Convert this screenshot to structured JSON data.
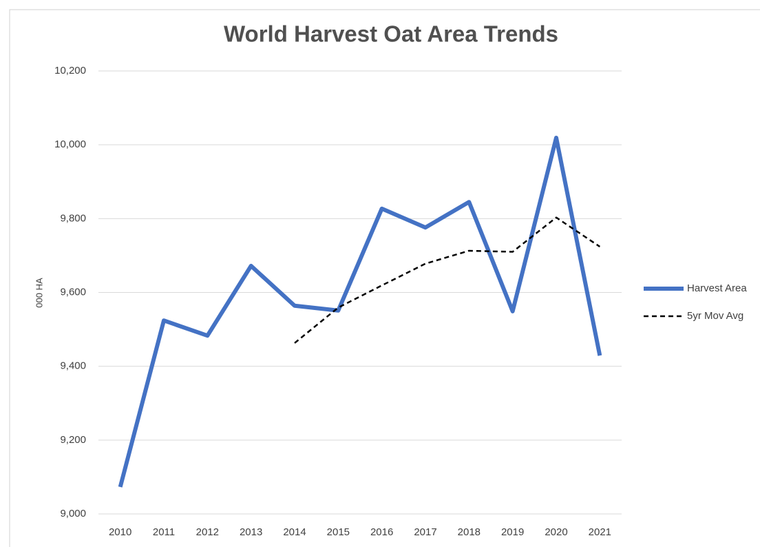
{
  "chart_data": {
    "type": "line",
    "title": "World Harvest Oat Area Trends",
    "y_label": "000 HA",
    "categories": [
      "2010",
      "2011",
      "2012",
      "2013",
      "2014",
      "2015",
      "2016",
      "2017",
      "2018",
      "2019",
      "2020",
      "2021"
    ],
    "series": [
      {
        "name": "Harvest Area",
        "color": "#4472c4",
        "style": "solid",
        "values": [
          9073,
          9524,
          9483,
          9672,
          9564,
          9551,
          9827,
          9776,
          9845,
          9549,
          10019,
          9429
        ]
      },
      {
        "name": "5yr Mov Avg",
        "color": "#000000",
        "style": "dashed",
        "values": [
          null,
          null,
          null,
          null,
          9463,
          9559,
          9619,
          9678,
          9713,
          9710,
          9803,
          9724
        ]
      }
    ],
    "ylim": [
      9000,
      10200
    ],
    "yticks": [
      {
        "value": 9000,
        "label": "9,000"
      },
      {
        "value": 9200,
        "label": "9,200"
      },
      {
        "value": 9400,
        "label": "9,400"
      },
      {
        "value": 9600,
        "label": "9,600"
      },
      {
        "value": 9800,
        "label": "9,800"
      },
      {
        "value": 10000,
        "label": "10,000"
      },
      {
        "value": 10200,
        "label": "10,200"
      }
    ],
    "grid": true,
    "legend": "right"
  }
}
